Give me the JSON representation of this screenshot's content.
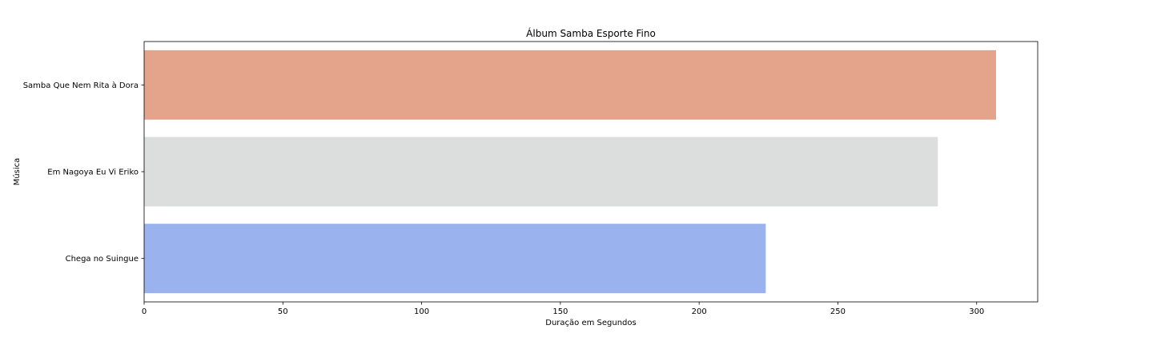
{
  "chart_data": {
    "type": "bar",
    "orientation": "horizontal",
    "title": "Álbum Samba Esporte Fino",
    "xlabel": "Duração em Segundos",
    "ylabel": "Música",
    "categories": [
      "Samba Que Nem Rita à Dora",
      "Em Nagoya Eu Vi Eriko",
      "Chega no Suingue"
    ],
    "values": [
      307,
      286,
      224
    ],
    "colors": [
      "#e4a38b",
      "#dcdddd",
      "#9ab3ee"
    ],
    "xlim": [
      0,
      322
    ],
    "xticks": [
      0,
      50,
      100,
      150,
      200,
      250,
      300
    ],
    "grid": false,
    "legend": "none"
  }
}
